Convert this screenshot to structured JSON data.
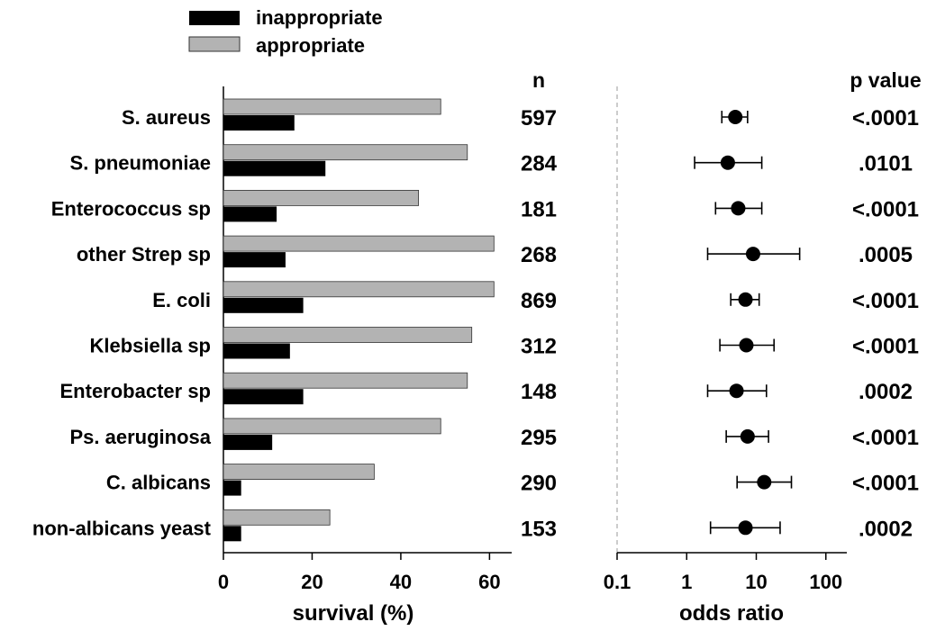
{
  "chart_data": {
    "type": "bar",
    "legend_position": "top-left",
    "grid": false,
    "categories": [
      "S. aureus",
      "S. pneumoniae",
      "Enterococcus sp",
      "other Strep sp",
      "E. coli",
      "Klebsiella sp",
      "Enterobacter sp",
      "Ps. aeruginosa",
      "C. albicans",
      "non-albicans yeast"
    ],
    "series": [
      {
        "name": "appropriate",
        "color": "#b3b3b3",
        "values": [
          49,
          55,
          44,
          61,
          61,
          56,
          55,
          49,
          34,
          24
        ]
      },
      {
        "name": "inappropriate",
        "color": "#000000",
        "values": [
          16,
          23,
          12,
          14,
          18,
          15,
          18,
          11,
          4,
          4
        ]
      }
    ],
    "xlabel": "survival (%)",
    "xlim": [
      0,
      65
    ],
    "xticks": [
      "0",
      "20",
      "40",
      "60"
    ],
    "n_header": "n",
    "n_values": [
      "597",
      "284",
      "181",
      "268",
      "869",
      "312",
      "148",
      "295",
      "290",
      "153"
    ],
    "forest": {
      "type": "scatter",
      "xscale": "log",
      "xlabel": "odds ratio",
      "xlim": [
        0.1,
        200
      ],
      "xticks": [
        "0.1",
        "1",
        "10",
        "100"
      ],
      "reference_line": 0.1,
      "points": [
        {
          "or": 5,
          "low": 3.2,
          "high": 7.5
        },
        {
          "or": 3.9,
          "low": 1.3,
          "high": 12
        },
        {
          "or": 5.5,
          "low": 2.6,
          "high": 12
        },
        {
          "or": 9,
          "low": 2,
          "high": 42
        },
        {
          "or": 7,
          "low": 4.3,
          "high": 11
        },
        {
          "or": 7.2,
          "low": 3,
          "high": 18
        },
        {
          "or": 5.2,
          "low": 2,
          "high": 14
        },
        {
          "or": 7.5,
          "low": 3.7,
          "high": 15
        },
        {
          "or": 13,
          "low": 5.3,
          "high": 32
        },
        {
          "or": 7,
          "low": 2.2,
          "high": 22
        }
      ]
    },
    "p_header": "p value",
    "p_values": [
      "<.0001",
      ".0101",
      "<.0001",
      ".0005",
      "<.0001",
      "<.0001",
      ".0002",
      "<.0001",
      "<.0001",
      ".0002"
    ]
  }
}
